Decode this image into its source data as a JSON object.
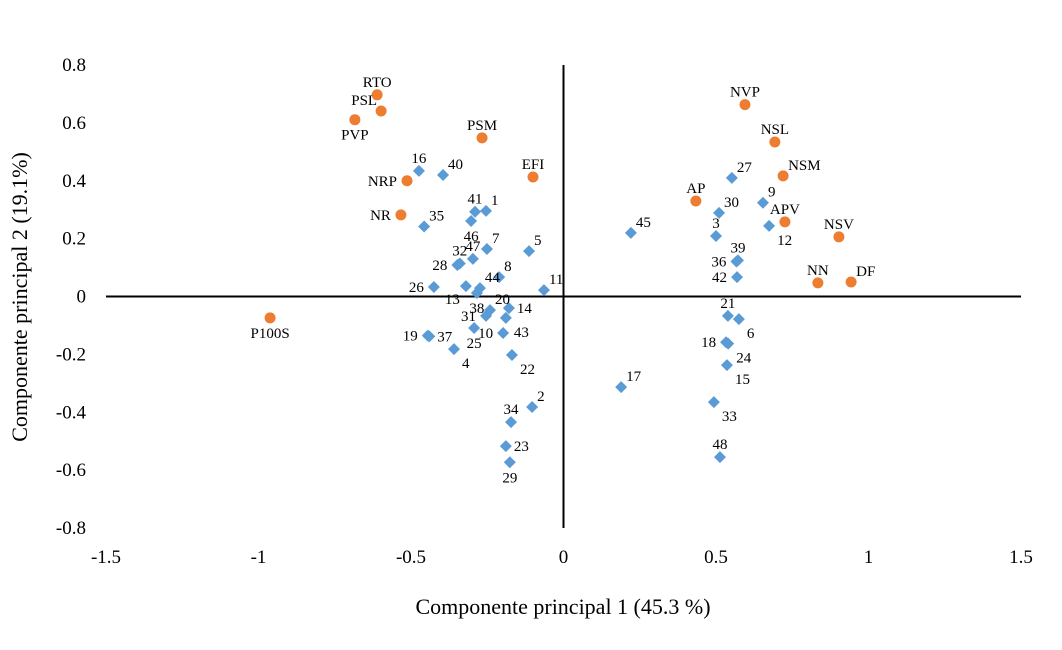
{
  "chart_data": {
    "type": "scatter",
    "title": "",
    "xlabel": "Componente principal 1 (45.3 %)",
    "ylabel": "Componente principal 2 (19.1%)",
    "xlim": [
      -1.5,
      1.5
    ],
    "ylim": [
      -0.8,
      0.8
    ],
    "xticks": [
      "-1.5",
      "-1",
      "-0.5",
      "0",
      "0.5",
      "1",
      "1.5"
    ],
    "yticks": [
      "0.8",
      "0.6",
      "0.4",
      "0.2",
      "0",
      "-0.2",
      "-0.4",
      "-0.6",
      "-0.8"
    ],
    "grid": false,
    "legend": "none",
    "series": [
      {
        "marker": "circle",
        "color": "#ED7D31",
        "points": [
          {
            "label": "RTO",
            "x": -0.611,
            "y": 0.697
          },
          {
            "label": "PSL",
            "x": -0.598,
            "y": 0.641
          },
          {
            "label": "PVP",
            "x": -0.684,
            "y": 0.611
          },
          {
            "label": "PSM",
            "x": -0.267,
            "y": 0.548
          },
          {
            "label": "EFI",
            "x": -0.1,
            "y": 0.413
          },
          {
            "label": "NRP",
            "x": -0.513,
            "y": 0.4
          },
          {
            "label": "NR",
            "x": -0.533,
            "y": 0.282
          },
          {
            "label": "P100S",
            "x": -0.962,
            "y": -0.074
          },
          {
            "label": "NVP",
            "x": 0.595,
            "y": 0.663
          },
          {
            "label": "NSL",
            "x": 0.693,
            "y": 0.534
          },
          {
            "label": "NSM",
            "x": 0.72,
            "y": 0.417
          },
          {
            "label": "AP",
            "x": 0.434,
            "y": 0.33
          },
          {
            "label": "APV",
            "x": 0.726,
            "y": 0.258
          },
          {
            "label": "NSV",
            "x": 0.903,
            "y": 0.206
          },
          {
            "label": "NN",
            "x": 0.834,
            "y": 0.047
          },
          {
            "label": "DF",
            "x": 0.943,
            "y": 0.05
          }
        ]
      },
      {
        "marker": "diamond",
        "color": "#5B9BD5",
        "points": [
          {
            "label": "16",
            "x": -0.474,
            "y": 0.434
          },
          {
            "label": "40",
            "x": -0.395,
            "y": 0.42
          },
          {
            "label": "41",
            "x": -0.29,
            "y": 0.293
          },
          {
            "label": "1",
            "x": -0.254,
            "y": 0.296
          },
          {
            "label": "46",
            "x": -0.303,
            "y": 0.261
          },
          {
            "label": "35",
            "x": -0.457,
            "y": 0.242
          },
          {
            "label": "7",
            "x": -0.251,
            "y": 0.164
          },
          {
            "label": "5",
            "x": -0.113,
            "y": 0.157
          },
          {
            "label": "28",
            "x": -0.348,
            "y": 0.109
          },
          {
            "label": "32",
            "x": -0.34,
            "y": 0.114
          },
          {
            "label": "47",
            "x": -0.297,
            "y": 0.13
          },
          {
            "label": "8",
            "x": -0.211,
            "y": 0.067
          },
          {
            "label": "26",
            "x": -0.425,
            "y": 0.033
          },
          {
            "label": "44",
            "x": -0.274,
            "y": 0.029
          },
          {
            "label": "13",
            "x": -0.32,
            "y": 0.036
          },
          {
            "label": "38",
            "x": -0.284,
            "y": 0.012
          },
          {
            "label": "11",
            "x": -0.064,
            "y": 0.022
          },
          {
            "label": "20",
            "x": -0.241,
            "y": -0.047
          },
          {
            "label": "31",
            "x": -0.254,
            "y": -0.067
          },
          {
            "label": "14",
            "x": -0.179,
            "y": -0.04
          },
          {
            "label": "43",
            "x": -0.189,
            "y": -0.074
          },
          {
            "label": "25",
            "x": -0.293,
            "y": -0.109
          },
          {
            "label": "10",
            "x": -0.198,
            "y": -0.126
          },
          {
            "label": "19",
            "x": -0.445,
            "y": -0.135
          },
          {
            "label": "37",
            "x": -0.44,
            "y": -0.138
          },
          {
            "label": "4",
            "x": -0.359,
            "y": -0.182
          },
          {
            "label": "22",
            "x": -0.169,
            "y": -0.202
          },
          {
            "label": "2",
            "x": -0.103,
            "y": -0.382
          },
          {
            "label": "34",
            "x": -0.172,
            "y": -0.434
          },
          {
            "label": "23",
            "x": -0.189,
            "y": -0.517
          },
          {
            "label": "29",
            "x": -0.176,
            "y": -0.573
          },
          {
            "label": "27",
            "x": 0.552,
            "y": 0.41
          },
          {
            "label": "9",
            "x": 0.654,
            "y": 0.324
          },
          {
            "label": "30",
            "x": 0.51,
            "y": 0.289
          },
          {
            "label": "45",
            "x": 0.221,
            "y": 0.22
          },
          {
            "label": "3",
            "x": 0.5,
            "y": 0.209
          },
          {
            "label": "12",
            "x": 0.674,
            "y": 0.244
          },
          {
            "label": "39",
            "x": 0.572,
            "y": 0.125
          },
          {
            "label": "36",
            "x": 0.567,
            "y": 0.121
          },
          {
            "label": "42",
            "x": 0.569,
            "y": 0.067
          },
          {
            "label": "21",
            "x": 0.539,
            "y": -0.067
          },
          {
            "label": "6",
            "x": 0.575,
            "y": -0.078
          },
          {
            "label": "18",
            "x": 0.533,
            "y": -0.158
          },
          {
            "label": "24",
            "x": 0.54,
            "y": -0.163
          },
          {
            "label": "15",
            "x": 0.536,
            "y": -0.237
          },
          {
            "label": "17",
            "x": 0.189,
            "y": -0.313
          },
          {
            "label": "33",
            "x": 0.493,
            "y": -0.365
          },
          {
            "label": "48",
            "x": 0.513,
            "y": -0.555
          }
        ]
      }
    ]
  }
}
